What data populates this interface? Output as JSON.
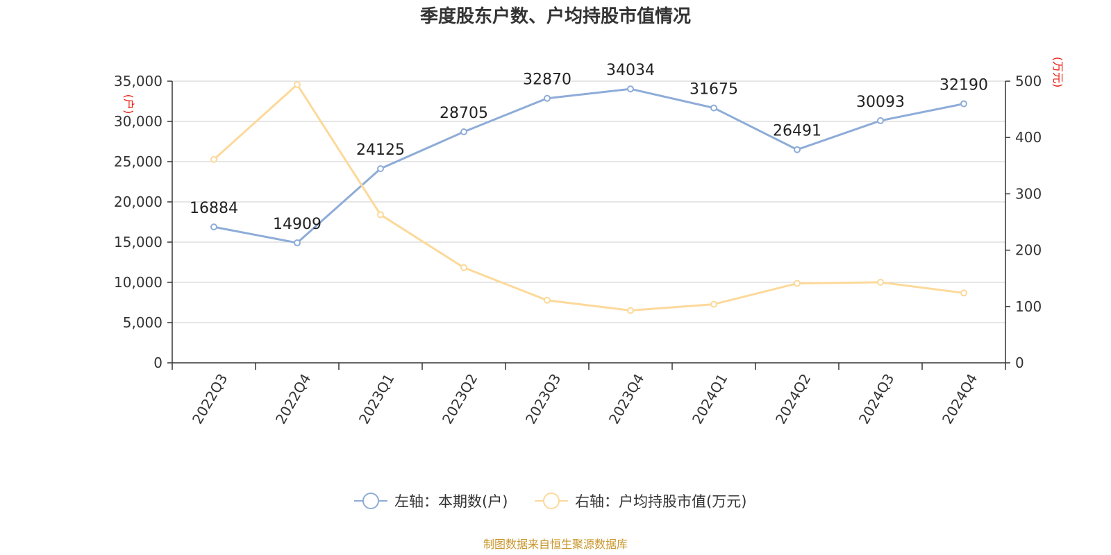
{
  "chart_data": {
    "type": "line",
    "title": "季度股东户数、户均持股市值情况",
    "categories": [
      "2022Q3",
      "2022Q4",
      "2023Q1",
      "2023Q2",
      "2023Q3",
      "2023Q4",
      "2024Q1",
      "2024Q2",
      "2024Q3",
      "2024Q4"
    ],
    "series": [
      {
        "name": "左轴：本期数(户)",
        "axis": "left",
        "color": "#8eacd8",
        "values": [
          16884,
          14909,
          24125,
          28705,
          32870,
          34034,
          31675,
          26491,
          30093,
          32190
        ],
        "show_labels": true
      },
      {
        "name": "右轴：户均持股市值(万元)",
        "axis": "right",
        "color": "#fcd99a",
        "values": [
          361,
          494,
          263,
          169,
          111,
          93,
          104,
          141,
          143,
          124
        ],
        "show_labels": false
      }
    ],
    "y_left": {
      "unit": "(户)",
      "min": 0,
      "max": 35000,
      "ticks": [
        0,
        5000,
        10000,
        15000,
        20000,
        25000,
        30000,
        35000
      ],
      "tick_labels": [
        "0",
        "5,000",
        "10,000",
        "15,000",
        "20,000",
        "25,000",
        "30,000",
        "35,000"
      ]
    },
    "y_right": {
      "unit": "(万元)",
      "min": 0,
      "max": 500,
      "ticks": [
        0,
        100,
        200,
        300,
        400,
        500
      ],
      "tick_labels": [
        "0",
        "100",
        "200",
        "300",
        "400",
        "500"
      ]
    },
    "grid": true,
    "legend_position": "bottom-center",
    "source": "制图数据来自恒生聚源数据库"
  }
}
